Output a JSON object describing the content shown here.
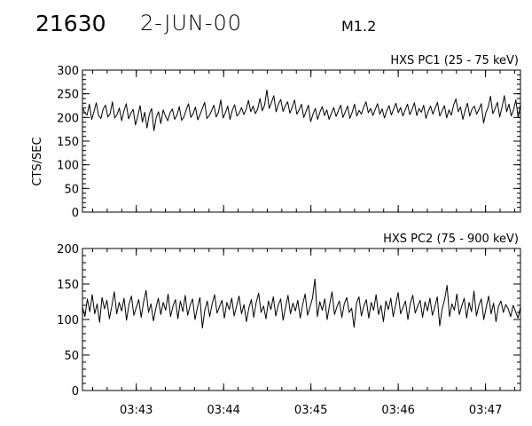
{
  "header": {
    "event_id": "21630",
    "date": "2-JUN-00",
    "flare_class": "M1.2"
  },
  "chart_data": [
    {
      "type": "line",
      "title": "HXS PC1 (25 - 75 keV)",
      "ylabel": "CTS/SEC",
      "xlabel": "",
      "ylim": [
        0,
        300
      ],
      "yticks": [
        "0",
        "50",
        "100",
        "150",
        "200",
        "250",
        "300"
      ],
      "xlim": [
        "03:42:23",
        "03:47:24"
      ],
      "xticks": [
        "03:43",
        "03:44",
        "03:45",
        "03:46",
        "03:47"
      ],
      "grid": false,
      "series": [
        {
          "values": [
            221,
            210,
            205,
            228,
            196,
            212,
            231,
            204,
            198,
            218,
            226,
            201,
            208,
            233,
            199,
            206,
            220,
            193,
            214,
            229,
            197,
            209,
            217,
            184,
            203,
            225,
            190,
            211,
            178,
            207,
            219,
            172,
            200,
            212,
            187,
            216,
            203,
            193,
            210,
            218,
            196,
            205,
            223,
            194,
            201,
            216,
            229,
            200,
            208,
            222,
            195,
            206,
            219,
            232,
            198,
            204,
            214,
            226,
            201,
            211,
            237,
            199,
            210,
            224,
            196,
            215,
            227,
            203,
            209,
            221,
            206,
            217,
            236,
            212,
            224,
            208,
            218,
            240,
            214,
            226,
            258,
            219,
            232,
            246,
            212,
            228,
            238,
            213,
            225,
            233,
            209,
            222,
            237,
            207,
            216,
            228,
            200,
            213,
            226,
            191,
            207,
            219,
            196,
            211,
            223,
            204,
            216,
            196,
            209,
            221,
            202,
            214,
            226,
            200,
            212,
            224,
            198,
            211,
            228,
            203,
            215,
            207,
            222,
            233,
            210,
            219,
            204,
            217,
            229,
            207,
            218,
            199,
            214,
            225,
            205,
            218,
            230,
            210,
            221,
            203,
            216,
            228,
            206,
            217,
            231,
            204,
            219,
            211,
            226,
            198,
            213,
            224,
            207,
            220,
            232,
            203,
            214,
            225,
            199,
            216,
            205,
            226,
            239,
            212,
            222,
            196,
            215,
            230,
            203,
            218,
            224,
            207,
            217,
            229,
            188,
            210,
            222,
            245,
            208,
            219,
            232,
            201,
            222,
            246,
            212,
            228,
            203,
            216,
            237,
            200,
            228
          ]
        }
      ]
    },
    {
      "type": "line",
      "title": "HXS PC2 (75 - 900 keV)",
      "ylabel": "",
      "xlabel": "",
      "ylim": [
        0,
        200
      ],
      "yticks": [
        "0",
        "50",
        "100",
        "150",
        "200"
      ],
      "xlim": [
        "03:42:23",
        "03:47:24"
      ],
      "xticks": [
        "03:43",
        "03:44",
        "03:45",
        "03:46",
        "03:47"
      ],
      "grid": false,
      "series": [
        {
          "values": [
            118,
            104,
            129,
            111,
            135,
            108,
            122,
            96,
            131,
            115,
            127,
            101,
            119,
            139,
            108,
            124,
            112,
            130,
            99,
            121,
            133,
            106,
            117,
            128,
            103,
            125,
            141,
            110,
            122,
            98,
            116,
            130,
            107,
            124,
            113,
            136,
            104,
            119,
            128,
            101,
            126,
            111,
            134,
            106,
            120,
            129,
            100,
            117,
            131,
            88,
            113,
            126,
            104,
            122,
            135,
            109,
            118,
            127,
            102,
            124,
            114,
            130,
            105,
            119,
            133,
            108,
            121,
            97,
            116,
            128,
            103,
            124,
            137,
            110,
            119,
            101,
            126,
            114,
            132,
            105,
            120,
            129,
            99,
            117,
            134,
            108,
            123,
            112,
            127,
            102,
            121,
            136,
            106,
            118,
            130,
            157,
            104,
            125,
            113,
            129,
            100,
            121,
            139,
            107,
            118,
            126,
            103,
            122,
            131,
            110,
            116,
            89,
            123,
            132,
            105,
            119,
            128,
            102,
            124,
            113,
            135,
            107,
            120,
            97,
            126,
            114,
            130,
            104,
            121,
            138,
            108,
            117,
            126,
            100,
            123,
            134,
            109,
            119,
            127,
            103,
            125,
            112,
            130,
            106,
            118,
            132,
            91,
            115,
            128,
            148,
            104,
            122,
            113,
            136,
            107,
            119,
            130,
            102,
            124,
            111,
            140,
            105,
            120,
            129,
            100,
            117,
            133,
            108,
            123,
            97,
            118,
            126,
            110,
            121,
            115,
            104,
            120,
            111,
            102,
            118
          ]
        }
      ]
    }
  ]
}
